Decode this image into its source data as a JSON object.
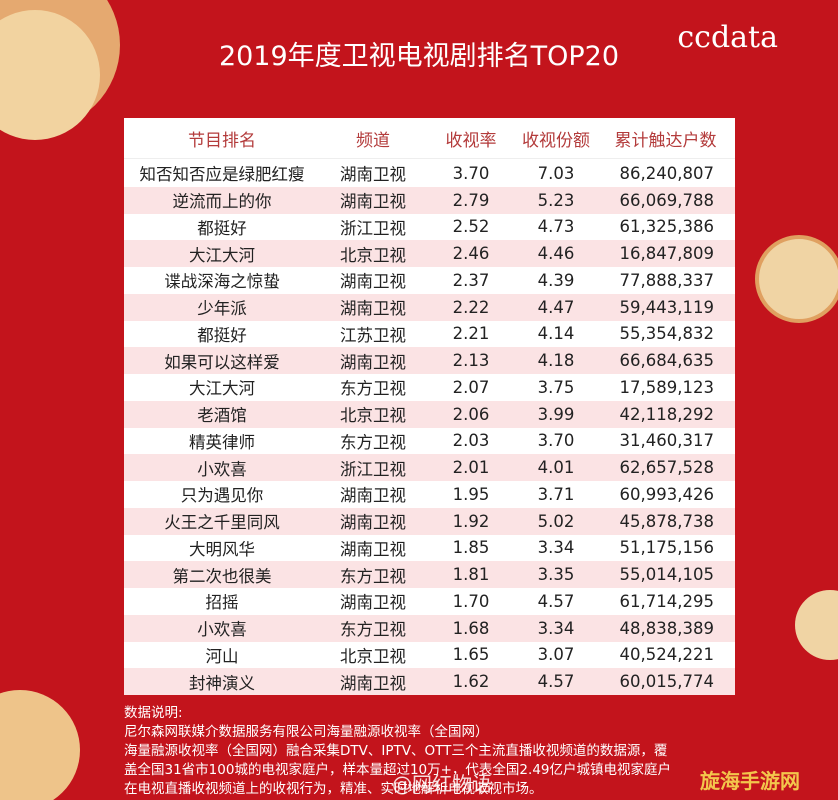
{
  "header": {
    "title": "2019年度卫视电视剧排名TOP20",
    "brand": "ccdata"
  },
  "table": {
    "columns": [
      "节目排名",
      "频道",
      "收视率",
      "收视份额",
      "累计触达户数"
    ],
    "rows": [
      [
        "知否知否应是绿肥红瘦",
        "湖南卫视",
        "3.70",
        "7.03",
        "86,240,807"
      ],
      [
        "逆流而上的你",
        "湖南卫视",
        "2.79",
        "5.23",
        "66,069,788"
      ],
      [
        "都挺好",
        "浙江卫视",
        "2.52",
        "4.73",
        "61,325,386"
      ],
      [
        "大江大河",
        "北京卫视",
        "2.46",
        "4.46",
        "16,847,809"
      ],
      [
        "谍战深海之惊蛰",
        "湖南卫视",
        "2.37",
        "4.39",
        "77,888,337"
      ],
      [
        "少年派",
        "湖南卫视",
        "2.22",
        "4.47",
        "59,443,119"
      ],
      [
        "都挺好",
        "江苏卫视",
        "2.21",
        "4.14",
        "55,354,832"
      ],
      [
        "如果可以这样爱",
        "湖南卫视",
        "2.13",
        "4.18",
        "66,684,635"
      ],
      [
        "大江大河",
        "东方卫视",
        "2.07",
        "3.75",
        "17,589,123"
      ],
      [
        "老酒馆",
        "北京卫视",
        "2.06",
        "3.99",
        "42,118,292"
      ],
      [
        "精英律师",
        "东方卫视",
        "2.03",
        "3.70",
        "31,460,317"
      ],
      [
        "小欢喜",
        "浙江卫视",
        "2.01",
        "4.01",
        "62,657,528"
      ],
      [
        "只为遇见你",
        "湖南卫视",
        "1.95",
        "3.71",
        "60,993,426"
      ],
      [
        "火王之千里同风",
        "湖南卫视",
        "1.92",
        "5.02",
        "45,878,738"
      ],
      [
        "大明风华",
        "湖南卫视",
        "1.85",
        "3.34",
        "51,175,156"
      ],
      [
        "第二次也很美",
        "东方卫视",
        "1.81",
        "3.35",
        "55,014,105"
      ],
      [
        "招摇",
        "湖南卫视",
        "1.70",
        "4.57",
        "61,714,295"
      ],
      [
        "小欢喜",
        "东方卫视",
        "1.68",
        "3.34",
        "48,838,389"
      ],
      [
        "河山",
        "北京卫视",
        "1.65",
        "3.07",
        "40,524,221"
      ],
      [
        "封神演义",
        "湖南卫视",
        "1.62",
        "4.57",
        "60,015,774"
      ]
    ]
  },
  "notes": [
    "数据说明:",
    "尼尔森网联媒介数据服务有限公司海量融源收视率（全国网）",
    "海量融源收视率（全国网）融合采集DTV、IPTV、OTT三个主流直播收视频道的数据源，覆",
    "盖全国31省市100城的电视家庭户，样本量超过10万+，代表全国2.49亿户城镇电视家庭户",
    "在电视直播收视频道上的收视行为，精准、实时地解析电视收视市场。"
  ],
  "watermarks": [
    "@网红物语",
    "旋海手游网"
  ]
}
